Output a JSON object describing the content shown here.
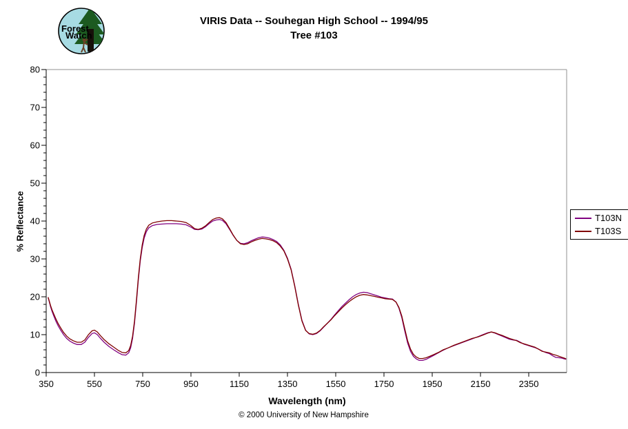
{
  "header": {
    "title_line1": "VIRIS Data -- Souhegan High School -- 1994/95",
    "title_line2": "Tree #103",
    "logo": {
      "name": "forest-watch-logo",
      "text_line1": "Forest",
      "text_line2": "Watch"
    }
  },
  "footer": {
    "copyright": "© 2000 University of New Hampshire"
  },
  "legend": {
    "entries": [
      {
        "label": "T103N",
        "color": "#800080"
      },
      {
        "label": "T103S",
        "color": "#7F0000"
      }
    ]
  },
  "colors": {
    "series_n": "#800080",
    "series_s": "#7F0000",
    "axis": "#000000",
    "frame": "#909090",
    "logo_sky": "#a7dbe3",
    "logo_green": "#1c5a20",
    "logo_trunk": "#17100a",
    "logo_person": "#6b4226"
  },
  "chart_data": {
    "type": "line",
    "title": "VIRIS Data -- Souhegan High School -- 1994/95  Tree #103",
    "xlabel": "Wavelength (nm)",
    "ylabel": "% Reflectance",
    "xlim": [
      350,
      2507
    ],
    "ylim": [
      0,
      80
    ],
    "x_ticks": [
      350,
      550,
      750,
      950,
      1150,
      1350,
      1550,
      1750,
      1950,
      2150,
      2350
    ],
    "y_ticks_major": [
      0,
      10,
      20,
      30,
      40,
      50,
      60,
      70,
      80
    ],
    "y_minor_step": 2,
    "grid": false,
    "legend_position": "right-outside",
    "series": [
      {
        "name": "T103N",
        "color": "#800080",
        "points": [
          [
            358,
            19.8
          ],
          [
            363,
            18.6
          ],
          [
            368,
            17.4
          ],
          [
            374,
            16.2
          ],
          [
            381,
            15.0
          ],
          [
            390,
            13.6
          ],
          [
            400,
            12.3
          ],
          [
            410,
            11.2
          ],
          [
            422,
            10.0
          ],
          [
            435,
            9.0
          ],
          [
            448,
            8.3
          ],
          [
            462,
            7.8
          ],
          [
            478,
            7.4
          ],
          [
            495,
            7.4
          ],
          [
            510,
            8.0
          ],
          [
            525,
            9.3
          ],
          [
            540,
            10.3
          ],
          [
            550,
            10.5
          ],
          [
            562,
            10.0
          ],
          [
            575,
            9.0
          ],
          [
            590,
            8.0
          ],
          [
            610,
            6.9
          ],
          [
            630,
            6.0
          ],
          [
            650,
            5.2
          ],
          [
            665,
            4.7
          ],
          [
            680,
            4.6
          ],
          [
            692,
            5.2
          ],
          [
            700,
            6.5
          ],
          [
            708,
            9.0
          ],
          [
            716,
            13.0
          ],
          [
            724,
            18.5
          ],
          [
            732,
            24.5
          ],
          [
            740,
            29.5
          ],
          [
            748,
            33.0
          ],
          [
            756,
            35.5
          ],
          [
            765,
            37.2
          ],
          [
            775,
            38.2
          ],
          [
            790,
            38.8
          ],
          [
            810,
            39.1
          ],
          [
            830,
            39.2
          ],
          [
            850,
            39.3
          ],
          [
            870,
            39.3
          ],
          [
            890,
            39.3
          ],
          [
            910,
            39.2
          ],
          [
            930,
            39.0
          ],
          [
            950,
            38.4
          ],
          [
            965,
            37.8
          ],
          [
            980,
            37.7
          ],
          [
            995,
            37.9
          ],
          [
            1010,
            38.5
          ],
          [
            1025,
            39.3
          ],
          [
            1040,
            40.0
          ],
          [
            1055,
            40.3
          ],
          [
            1068,
            40.4
          ],
          [
            1080,
            40.2
          ],
          [
            1095,
            39.3
          ],
          [
            1110,
            37.8
          ],
          [
            1125,
            36.2
          ],
          [
            1140,
            34.9
          ],
          [
            1155,
            34.1
          ],
          [
            1170,
            34.0
          ],
          [
            1185,
            34.3
          ],
          [
            1200,
            34.8
          ],
          [
            1215,
            35.2
          ],
          [
            1230,
            35.6
          ],
          [
            1245,
            35.8
          ],
          [
            1260,
            35.7
          ],
          [
            1275,
            35.5
          ],
          [
            1290,
            35.1
          ],
          [
            1305,
            34.6
          ],
          [
            1320,
            33.7
          ],
          [
            1335,
            32.3
          ],
          [
            1350,
            30.2
          ],
          [
            1365,
            27.3
          ],
          [
            1380,
            23.0
          ],
          [
            1395,
            18.0
          ],
          [
            1410,
            13.8
          ],
          [
            1425,
            11.2
          ],
          [
            1440,
            10.2
          ],
          [
            1455,
            10.0
          ],
          [
            1470,
            10.3
          ],
          [
            1485,
            11.0
          ],
          [
            1500,
            12.0
          ],
          [
            1515,
            13.0
          ],
          [
            1530,
            14.0
          ],
          [
            1545,
            15.2
          ],
          [
            1560,
            16.3
          ],
          [
            1575,
            17.4
          ],
          [
            1590,
            18.3
          ],
          [
            1605,
            19.2
          ],
          [
            1620,
            20.0
          ],
          [
            1635,
            20.6
          ],
          [
            1650,
            21.0
          ],
          [
            1665,
            21.2
          ],
          [
            1680,
            21.1
          ],
          [
            1695,
            20.8
          ],
          [
            1710,
            20.5
          ],
          [
            1725,
            20.2
          ],
          [
            1740,
            19.9
          ],
          [
            1755,
            19.7
          ],
          [
            1770,
            19.5
          ],
          [
            1785,
            19.4
          ],
          [
            1800,
            18.6
          ],
          [
            1812,
            17.0
          ],
          [
            1824,
            14.5
          ],
          [
            1836,
            11.0
          ],
          [
            1848,
            7.8
          ],
          [
            1860,
            5.6
          ],
          [
            1872,
            4.3
          ],
          [
            1884,
            3.6
          ],
          [
            1896,
            3.2
          ],
          [
            1910,
            3.2
          ],
          [
            1925,
            3.5
          ],
          [
            1940,
            4.0
          ],
          [
            1955,
            4.5
          ],
          [
            1975,
            5.2
          ],
          [
            1995,
            5.9
          ],
          [
            2015,
            6.5
          ],
          [
            2040,
            7.1
          ],
          [
            2065,
            7.7
          ],
          [
            2090,
            8.3
          ],
          [
            2115,
            8.9
          ],
          [
            2140,
            9.5
          ],
          [
            2160,
            10.0
          ],
          [
            2180,
            10.5
          ],
          [
            2195,
            10.7
          ],
          [
            2210,
            10.4
          ],
          [
            2225,
            10.0
          ],
          [
            2240,
            9.6
          ],
          [
            2255,
            9.2
          ],
          [
            2270,
            8.8
          ],
          [
            2285,
            8.6
          ],
          [
            2300,
            8.5
          ],
          [
            2315,
            8.0
          ],
          [
            2330,
            7.5
          ],
          [
            2345,
            7.2
          ],
          [
            2360,
            6.9
          ],
          [
            2375,
            6.6
          ],
          [
            2390,
            6.2
          ],
          [
            2405,
            5.7
          ],
          [
            2420,
            5.3
          ],
          [
            2435,
            5.0
          ],
          [
            2450,
            4.4
          ],
          [
            2462,
            4.0
          ],
          [
            2475,
            3.9
          ],
          [
            2488,
            3.8
          ],
          [
            2498,
            3.6
          ],
          [
            2505,
            3.5
          ]
        ]
      },
      {
        "name": "T103S",
        "color": "#7F0000",
        "points": [
          [
            358,
            19.9
          ],
          [
            363,
            18.8
          ],
          [
            368,
            17.7
          ],
          [
            374,
            16.6
          ],
          [
            381,
            15.5
          ],
          [
            390,
            14.2
          ],
          [
            400,
            12.9
          ],
          [
            410,
            11.8
          ],
          [
            422,
            10.6
          ],
          [
            435,
            9.6
          ],
          [
            448,
            8.9
          ],
          [
            462,
            8.4
          ],
          [
            478,
            8.0
          ],
          [
            495,
            8.0
          ],
          [
            510,
            8.6
          ],
          [
            525,
            10.0
          ],
          [
            540,
            11.0
          ],
          [
            550,
            11.2
          ],
          [
            562,
            10.7
          ],
          [
            575,
            9.7
          ],
          [
            590,
            8.7
          ],
          [
            610,
            7.6
          ],
          [
            630,
            6.7
          ],
          [
            650,
            5.8
          ],
          [
            665,
            5.3
          ],
          [
            680,
            5.2
          ],
          [
            692,
            5.8
          ],
          [
            700,
            7.1
          ],
          [
            708,
            9.6
          ],
          [
            716,
            13.6
          ],
          [
            724,
            19.1
          ],
          [
            732,
            25.1
          ],
          [
            740,
            30.1
          ],
          [
            748,
            33.7
          ],
          [
            756,
            36.2
          ],
          [
            765,
            37.9
          ],
          [
            775,
            38.9
          ],
          [
            790,
            39.5
          ],
          [
            810,
            39.8
          ],
          [
            830,
            40.0
          ],
          [
            850,
            40.1
          ],
          [
            870,
            40.1
          ],
          [
            890,
            40.0
          ],
          [
            910,
            39.9
          ],
          [
            930,
            39.6
          ],
          [
            950,
            38.8
          ],
          [
            965,
            38.0
          ],
          [
            980,
            37.8
          ],
          [
            995,
            38.1
          ],
          [
            1010,
            38.7
          ],
          [
            1025,
            39.6
          ],
          [
            1040,
            40.4
          ],
          [
            1055,
            40.8
          ],
          [
            1068,
            40.9
          ],
          [
            1080,
            40.6
          ],
          [
            1095,
            39.6
          ],
          [
            1110,
            38.0
          ],
          [
            1125,
            36.3
          ],
          [
            1140,
            34.9
          ],
          [
            1155,
            34.0
          ],
          [
            1170,
            33.8
          ],
          [
            1185,
            34.0
          ],
          [
            1200,
            34.5
          ],
          [
            1215,
            34.9
          ],
          [
            1230,
            35.2
          ],
          [
            1245,
            35.4
          ],
          [
            1260,
            35.3
          ],
          [
            1275,
            35.1
          ],
          [
            1290,
            34.8
          ],
          [
            1305,
            34.3
          ],
          [
            1320,
            33.4
          ],
          [
            1335,
            32.1
          ],
          [
            1350,
            30.0
          ],
          [
            1365,
            27.1
          ],
          [
            1380,
            22.8
          ],
          [
            1395,
            17.8
          ],
          [
            1410,
            13.6
          ],
          [
            1425,
            11.1
          ],
          [
            1440,
            10.3
          ],
          [
            1455,
            10.1
          ],
          [
            1470,
            10.4
          ],
          [
            1485,
            11.1
          ],
          [
            1500,
            12.1
          ],
          [
            1515,
            13.0
          ],
          [
            1530,
            13.9
          ],
          [
            1545,
            15.0
          ],
          [
            1560,
            16.0
          ],
          [
            1575,
            17.0
          ],
          [
            1590,
            17.9
          ],
          [
            1605,
            18.7
          ],
          [
            1620,
            19.4
          ],
          [
            1635,
            20.0
          ],
          [
            1650,
            20.4
          ],
          [
            1665,
            20.6
          ],
          [
            1680,
            20.5
          ],
          [
            1695,
            20.3
          ],
          [
            1710,
            20.1
          ],
          [
            1725,
            19.9
          ],
          [
            1740,
            19.7
          ],
          [
            1755,
            19.5
          ],
          [
            1770,
            19.4
          ],
          [
            1785,
            19.3
          ],
          [
            1800,
            18.6
          ],
          [
            1812,
            17.2
          ],
          [
            1824,
            14.9
          ],
          [
            1836,
            11.6
          ],
          [
            1848,
            8.4
          ],
          [
            1860,
            6.2
          ],
          [
            1872,
            4.8
          ],
          [
            1884,
            4.1
          ],
          [
            1896,
            3.7
          ],
          [
            1910,
            3.7
          ],
          [
            1925,
            3.9
          ],
          [
            1940,
            4.3
          ],
          [
            1955,
            4.7
          ],
          [
            1975,
            5.3
          ],
          [
            1995,
            6.0
          ],
          [
            2015,
            6.5
          ],
          [
            2040,
            7.2
          ],
          [
            2065,
            7.8
          ],
          [
            2090,
            8.4
          ],
          [
            2115,
            9.0
          ],
          [
            2140,
            9.4
          ],
          [
            2160,
            9.9
          ],
          [
            2180,
            10.4
          ],
          [
            2195,
            10.7
          ],
          [
            2210,
            10.5
          ],
          [
            2225,
            10.1
          ],
          [
            2240,
            9.8
          ],
          [
            2255,
            9.4
          ],
          [
            2270,
            9.0
          ],
          [
            2285,
            8.7
          ],
          [
            2300,
            8.4
          ],
          [
            2315,
            7.9
          ],
          [
            2330,
            7.6
          ],
          [
            2345,
            7.3
          ],
          [
            2360,
            7.0
          ],
          [
            2375,
            6.7
          ],
          [
            2390,
            6.2
          ],
          [
            2405,
            5.6
          ],
          [
            2420,
            5.4
          ],
          [
            2435,
            5.2
          ],
          [
            2450,
            4.8
          ],
          [
            2462,
            4.6
          ],
          [
            2475,
            4.3
          ],
          [
            2488,
            4.0
          ],
          [
            2498,
            3.8
          ],
          [
            2505,
            3.6
          ]
        ]
      }
    ]
  }
}
